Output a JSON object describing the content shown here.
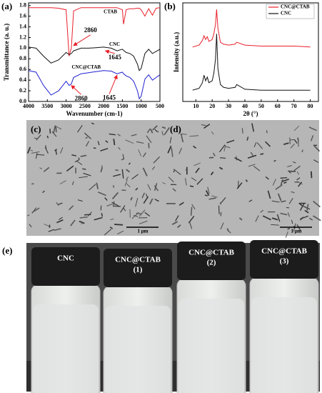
{
  "chart_data": [
    {
      "type": "line",
      "panel": "(a)",
      "x_label": "Wavenumber (cm-1)",
      "y_label": "Transmittance (a. u.)",
      "xlim": [
        4000,
        500
      ],
      "xticks": [
        4000,
        3500,
        3000,
        2500,
        2000,
        1500,
        1000,
        500
      ],
      "ylim": [
        0,
        1.85
      ],
      "yticks": [
        {
          "value": 0,
          "label": "0.0"
        },
        0.2,
        0.4,
        0.6,
        0.8,
        {
          "value": 1,
          "label": "1.0"
        },
        1.2,
        1.4,
        1.6,
        1.8
      ],
      "x": [
        4000,
        3800,
        3600,
        3400,
        3200,
        3000,
        2920,
        2860,
        2800,
        2600,
        2400,
        2200,
        2000,
        1800,
        1645,
        1500,
        1470,
        1400,
        1300,
        1200,
        1100,
        1050,
        1000,
        900,
        800,
        700,
        600,
        500
      ],
      "series": [
        {
          "name": "CTAB",
          "color": "#e8202a",
          "values": [
            1.76,
            1.76,
            1.76,
            1.76,
            1.75,
            1.72,
            0.85,
            1.0,
            1.7,
            1.76,
            1.76,
            1.76,
            1.76,
            1.76,
            1.76,
            1.72,
            1.45,
            1.72,
            1.74,
            1.74,
            1.75,
            1.75,
            1.72,
            1.6,
            1.74,
            1.62,
            1.75,
            1.76
          ]
        },
        {
          "name": "CNC",
          "color": "#111111",
          "values": [
            1.02,
            1.0,
            0.85,
            0.72,
            0.78,
            0.92,
            0.88,
            0.9,
            0.95,
            1.0,
            1.0,
            1.01,
            1.02,
            1.0,
            0.95,
            0.98,
            0.96,
            0.92,
            0.9,
            0.85,
            0.7,
            0.58,
            0.62,
            0.9,
            0.98,
            0.9,
            0.94,
            0.98
          ]
        },
        {
          "name": "CNC@CTAB",
          "color": "#2020d0",
          "values": [
            0.58,
            0.55,
            0.3,
            0.12,
            0.2,
            0.38,
            0.3,
            0.33,
            0.45,
            0.52,
            0.54,
            0.56,
            0.58,
            0.57,
            0.52,
            0.55,
            0.52,
            0.48,
            0.45,
            0.38,
            0.2,
            0.05,
            0.1,
            0.42,
            0.5,
            0.4,
            0.45,
            0.5
          ]
        }
      ],
      "annotations": [
        "2860",
        "1645",
        "2860",
        "1645"
      ]
    },
    {
      "type": "line",
      "panel": "(b)",
      "x_label": "2θ (°)",
      "y_label": "Intensity (a.u.)",
      "xlim": [
        2,
        85
      ],
      "xticks": [
        10,
        20,
        30,
        40,
        50,
        60,
        70,
        80
      ],
      "ylim": [
        0,
        1.05
      ],
      "legend": "upper right",
      "x": [
        8,
        10,
        12,
        14,
        15,
        16,
        17,
        18,
        20,
        21,
        22,
        22.7,
        23.5,
        25,
        27,
        30,
        34,
        35,
        40,
        50,
        60,
        70,
        80
      ],
      "series": [
        {
          "name": "CNC@CTAB",
          "color": "#e8202a",
          "values": [
            0.58,
            0.59,
            0.6,
            0.65,
            0.7,
            0.66,
            0.69,
            0.64,
            0.66,
            0.72,
            0.82,
            0.98,
            0.78,
            0.63,
            0.61,
            0.6,
            0.61,
            0.63,
            0.6,
            0.59,
            0.59,
            0.59,
            0.58
          ]
        },
        {
          "name": "CNC",
          "color": "#111111",
          "values": [
            0.12,
            0.13,
            0.14,
            0.2,
            0.28,
            0.22,
            0.26,
            0.2,
            0.22,
            0.3,
            0.45,
            0.72,
            0.35,
            0.18,
            0.15,
            0.14,
            0.15,
            0.18,
            0.13,
            0.12,
            0.12,
            0.12,
            0.12
          ]
        }
      ]
    }
  ],
  "images": [
    {
      "label": "(c)",
      "scale_bar": "1 μm"
    },
    {
      "label": "(d)",
      "scale_bar": "1 μm"
    }
  ],
  "photo": {
    "label": "(e)",
    "vials": [
      {
        "name": "CNC"
      },
      {
        "name": "CNC@CTAB",
        "number": "(1)"
      },
      {
        "name": "CNC@CTAB",
        "number": "(2)"
      },
      {
        "name": "CNC@CTAB",
        "number": "(3)"
      }
    ]
  }
}
